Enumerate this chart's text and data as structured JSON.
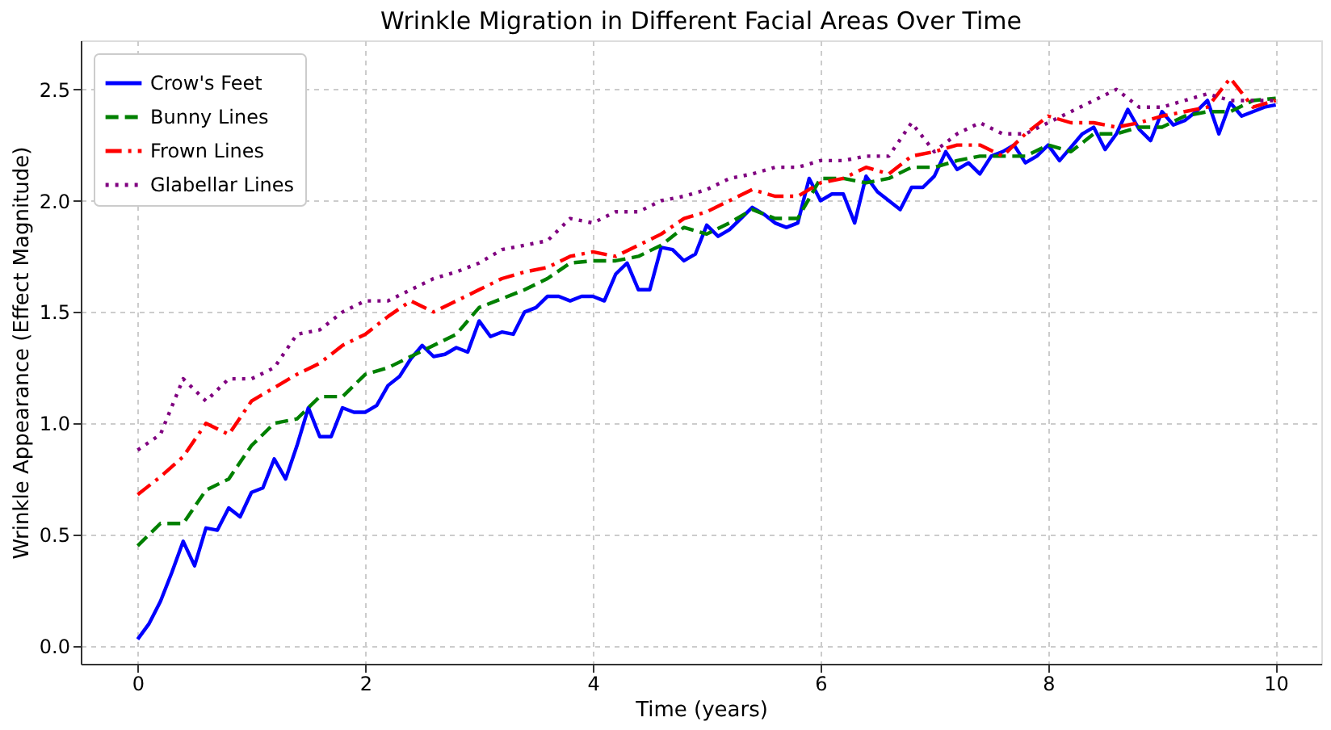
{
  "chart_data": {
    "type": "line",
    "title": "Wrinkle Migration in Different Facial Areas Over Time",
    "xlabel": "Time (years)",
    "ylabel": "Wrinkle Appearance (Effect Magnitude)",
    "xlim": [
      -0.5,
      10.4
    ],
    "ylim": [
      -0.08,
      2.72
    ],
    "xticks": [
      0,
      2,
      4,
      6,
      8,
      10
    ],
    "yticks": [
      {
        "value": 0,
        "label": "0.0"
      },
      {
        "value": 0.5,
        "label": "0.5"
      },
      {
        "value": 1,
        "label": "1.0"
      },
      {
        "value": 1.5,
        "label": "1.5"
      },
      {
        "value": 2,
        "label": "2.0"
      },
      {
        "value": 2.5,
        "label": "2.5"
      }
    ],
    "grid": true,
    "legend": "top left",
    "series": [
      {
        "name": "Crow's Feet",
        "color": "#0000ff",
        "line_style": "solid",
        "x": [
          0,
          0.1,
          0.2,
          0.3,
          0.4,
          0.5,
          0.6,
          0.7,
          0.8,
          0.9,
          1,
          1.1,
          1.2,
          1.3,
          1.4,
          1.5,
          1.6,
          1.7,
          1.8,
          1.9,
          2,
          2.1,
          2.2,
          2.3,
          2.4,
          2.5,
          2.6,
          2.7,
          2.8,
          2.9,
          3,
          3.1,
          3.2,
          3.3,
          3.4,
          3.5,
          3.6,
          3.7,
          3.8,
          3.9,
          4,
          4.1,
          4.2,
          4.3,
          4.4,
          4.5,
          4.6,
          4.7,
          4.8,
          4.9,
          5,
          5.1,
          5.2,
          5.3,
          5.4,
          5.5,
          5.6,
          5.7,
          5.8,
          5.9,
          6,
          6.1,
          6.2,
          6.3,
          6.4,
          6.5,
          6.6,
          6.7,
          6.8,
          6.9,
          7,
          7.1,
          7.2,
          7.3,
          7.4,
          7.5,
          7.6,
          7.7,
          7.8,
          7.9,
          8,
          8.1,
          8.2,
          8.3,
          8.4,
          8.5,
          8.6,
          8.7,
          8.8,
          8.9,
          9,
          9.1,
          9.2,
          9.3,
          9.4,
          9.5,
          9.6,
          9.7,
          9.8,
          9.9,
          10
        ],
        "values": [
          0.03,
          0.1,
          0.2,
          0.33,
          0.47,
          0.36,
          0.53,
          0.52,
          0.62,
          0.58,
          0.69,
          0.71,
          0.84,
          0.75,
          0.9,
          1.07,
          0.94,
          0.94,
          1.07,
          1.05,
          1.05,
          1.08,
          1.17,
          1.21,
          1.29,
          1.35,
          1.3,
          1.31,
          1.34,
          1.32,
          1.46,
          1.39,
          1.41,
          1.4,
          1.5,
          1.52,
          1.57,
          1.57,
          1.55,
          1.57,
          1.57,
          1.55,
          1.67,
          1.72,
          1.6,
          1.6,
          1.79,
          1.78,
          1.73,
          1.76,
          1.89,
          1.84,
          1.87,
          1.92,
          1.97,
          1.94,
          1.9,
          1.88,
          1.9,
          2.1,
          2.0,
          2.03,
          2.03,
          1.9,
          2.11,
          2.04,
          2.0,
          1.96,
          2.06,
          2.06,
          2.11,
          2.22,
          2.14,
          2.17,
          2.12,
          2.2,
          2.22,
          2.25,
          2.17,
          2.2,
          2.25,
          2.18,
          2.24,
          2.3,
          2.33,
          2.23,
          2.3,
          2.41,
          2.32,
          2.27,
          2.4,
          2.34,
          2.36,
          2.4,
          2.45,
          2.3,
          2.44,
          2.38,
          2.4,
          2.42,
          2.43
        ]
      },
      {
        "name": "Bunny Lines",
        "color": "#008000",
        "line_style": "dashed",
        "x": [
          0,
          0.2,
          0.4,
          0.6,
          0.8,
          1,
          1.2,
          1.4,
          1.6,
          1.8,
          2,
          2.2,
          2.4,
          2.6,
          2.8,
          3,
          3.2,
          3.4,
          3.6,
          3.8,
          4,
          4.2,
          4.4,
          4.6,
          4.8,
          5,
          5.2,
          5.4,
          5.6,
          5.8,
          6,
          6.2,
          6.4,
          6.6,
          6.8,
          7,
          7.2,
          7.4,
          7.6,
          7.8,
          8,
          8.2,
          8.4,
          8.6,
          8.8,
          9,
          9.2,
          9.4,
          9.6,
          9.8,
          10
        ],
        "values": [
          0.45,
          0.55,
          0.55,
          0.7,
          0.75,
          0.9,
          1.0,
          1.02,
          1.12,
          1.12,
          1.22,
          1.25,
          1.3,
          1.35,
          1.4,
          1.52,
          1.56,
          1.6,
          1.65,
          1.72,
          1.73,
          1.73,
          1.75,
          1.8,
          1.88,
          1.85,
          1.9,
          1.96,
          1.92,
          1.92,
          2.1,
          2.1,
          2.08,
          2.1,
          2.15,
          2.15,
          2.18,
          2.2,
          2.2,
          2.2,
          2.25,
          2.22,
          2.3,
          2.3,
          2.33,
          2.33,
          2.38,
          2.4,
          2.4,
          2.45,
          2.46
        ]
      },
      {
        "name": "Frown Lines",
        "color": "#ff0000",
        "line_style": "dashdot",
        "x": [
          0,
          0.2,
          0.4,
          0.6,
          0.8,
          1,
          1.2,
          1.4,
          1.6,
          1.8,
          2,
          2.2,
          2.4,
          2.6,
          2.8,
          3,
          3.2,
          3.4,
          3.6,
          3.8,
          4,
          4.2,
          4.4,
          4.6,
          4.8,
          5,
          5.2,
          5.4,
          5.6,
          5.8,
          6,
          6.2,
          6.4,
          6.6,
          6.8,
          7,
          7.2,
          7.4,
          7.6,
          7.8,
          8,
          8.2,
          8.4,
          8.6,
          8.8,
          9,
          9.2,
          9.4,
          9.6,
          9.8,
          10
        ],
        "values": [
          0.68,
          0.76,
          0.85,
          1.0,
          0.95,
          1.1,
          1.16,
          1.22,
          1.27,
          1.35,
          1.4,
          1.48,
          1.55,
          1.5,
          1.55,
          1.6,
          1.65,
          1.68,
          1.7,
          1.75,
          1.77,
          1.75,
          1.8,
          1.85,
          1.92,
          1.95,
          2.0,
          2.05,
          2.02,
          2.02,
          2.08,
          2.1,
          2.15,
          2.12,
          2.2,
          2.22,
          2.25,
          2.25,
          2.2,
          2.3,
          2.38,
          2.35,
          2.35,
          2.33,
          2.35,
          2.38,
          2.4,
          2.42,
          2.55,
          2.42,
          2.45
        ]
      },
      {
        "name": "Glabellar Lines",
        "color": "#800080",
        "line_style": "dotted",
        "x": [
          0,
          0.2,
          0.4,
          0.6,
          0.8,
          1,
          1.2,
          1.4,
          1.6,
          1.8,
          2,
          2.2,
          2.4,
          2.6,
          2.8,
          3,
          3.2,
          3.4,
          3.6,
          3.8,
          4,
          4.2,
          4.4,
          4.6,
          4.8,
          5,
          5.2,
          5.4,
          5.6,
          5.8,
          6,
          6.2,
          6.4,
          6.6,
          6.8,
          7,
          7.2,
          7.4,
          7.6,
          7.8,
          8,
          8.2,
          8.4,
          8.6,
          8.8,
          9,
          9.2,
          9.4,
          9.6,
          9.8,
          10
        ],
        "values": [
          0.88,
          0.95,
          1.2,
          1.1,
          1.2,
          1.2,
          1.25,
          1.4,
          1.42,
          1.5,
          1.55,
          1.55,
          1.6,
          1.65,
          1.68,
          1.72,
          1.78,
          1.8,
          1.82,
          1.92,
          1.9,
          1.95,
          1.95,
          2.0,
          2.02,
          2.05,
          2.1,
          2.12,
          2.15,
          2.15,
          2.18,
          2.18,
          2.2,
          2.2,
          2.35,
          2.22,
          2.3,
          2.35,
          2.3,
          2.3,
          2.35,
          2.4,
          2.45,
          2.5,
          2.42,
          2.42,
          2.45,
          2.48,
          2.45,
          2.45,
          2.45
        ]
      }
    ]
  }
}
